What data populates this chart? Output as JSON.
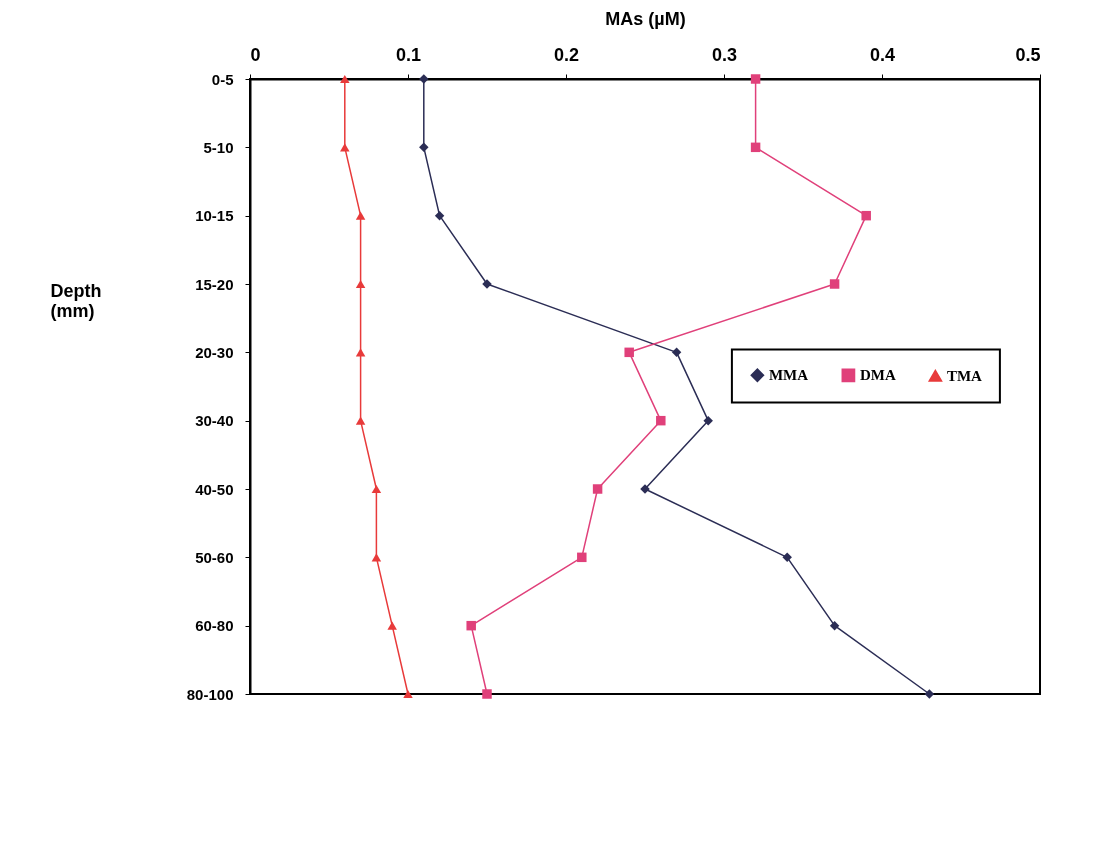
{
  "chart_data": {
    "type": "line",
    "orientation": "horizontal",
    "xlabel": "MAs (µM)",
    "ylabel": "Depth (mm)",
    "categories": [
      "0-5",
      "5-10",
      "10-15",
      "15-20",
      "20-30",
      "30-40",
      "40-50",
      "50-60",
      "60-80",
      "80-100"
    ],
    "xlim": [
      0,
      0.5
    ],
    "xticks": [
      0,
      0.1,
      0.2,
      0.3,
      0.4,
      0.5
    ],
    "grid": false,
    "legend": "right",
    "line_style": "solid",
    "series": [
      {
        "name": "MMA",
        "color": "#2b2d55",
        "marker": "diamond",
        "values": [
          0.11,
          0.11,
          0.12,
          0.15,
          0.27,
          0.29,
          0.25,
          0.34,
          0.37,
          0.43
        ]
      },
      {
        "name": "DMA",
        "color": "#e0407a",
        "marker": "square",
        "values": [
          0.32,
          0.32,
          0.39,
          0.37,
          0.24,
          0.26,
          0.22,
          0.21,
          0.14,
          0.15
        ]
      },
      {
        "name": "TMA",
        "color": "#e83a3a",
        "marker": "triangle",
        "values": [
          0.06,
          0.06,
          0.07,
          0.07,
          0.07,
          0.07,
          0.08,
          0.08,
          0.09,
          0.1
        ]
      }
    ]
  }
}
